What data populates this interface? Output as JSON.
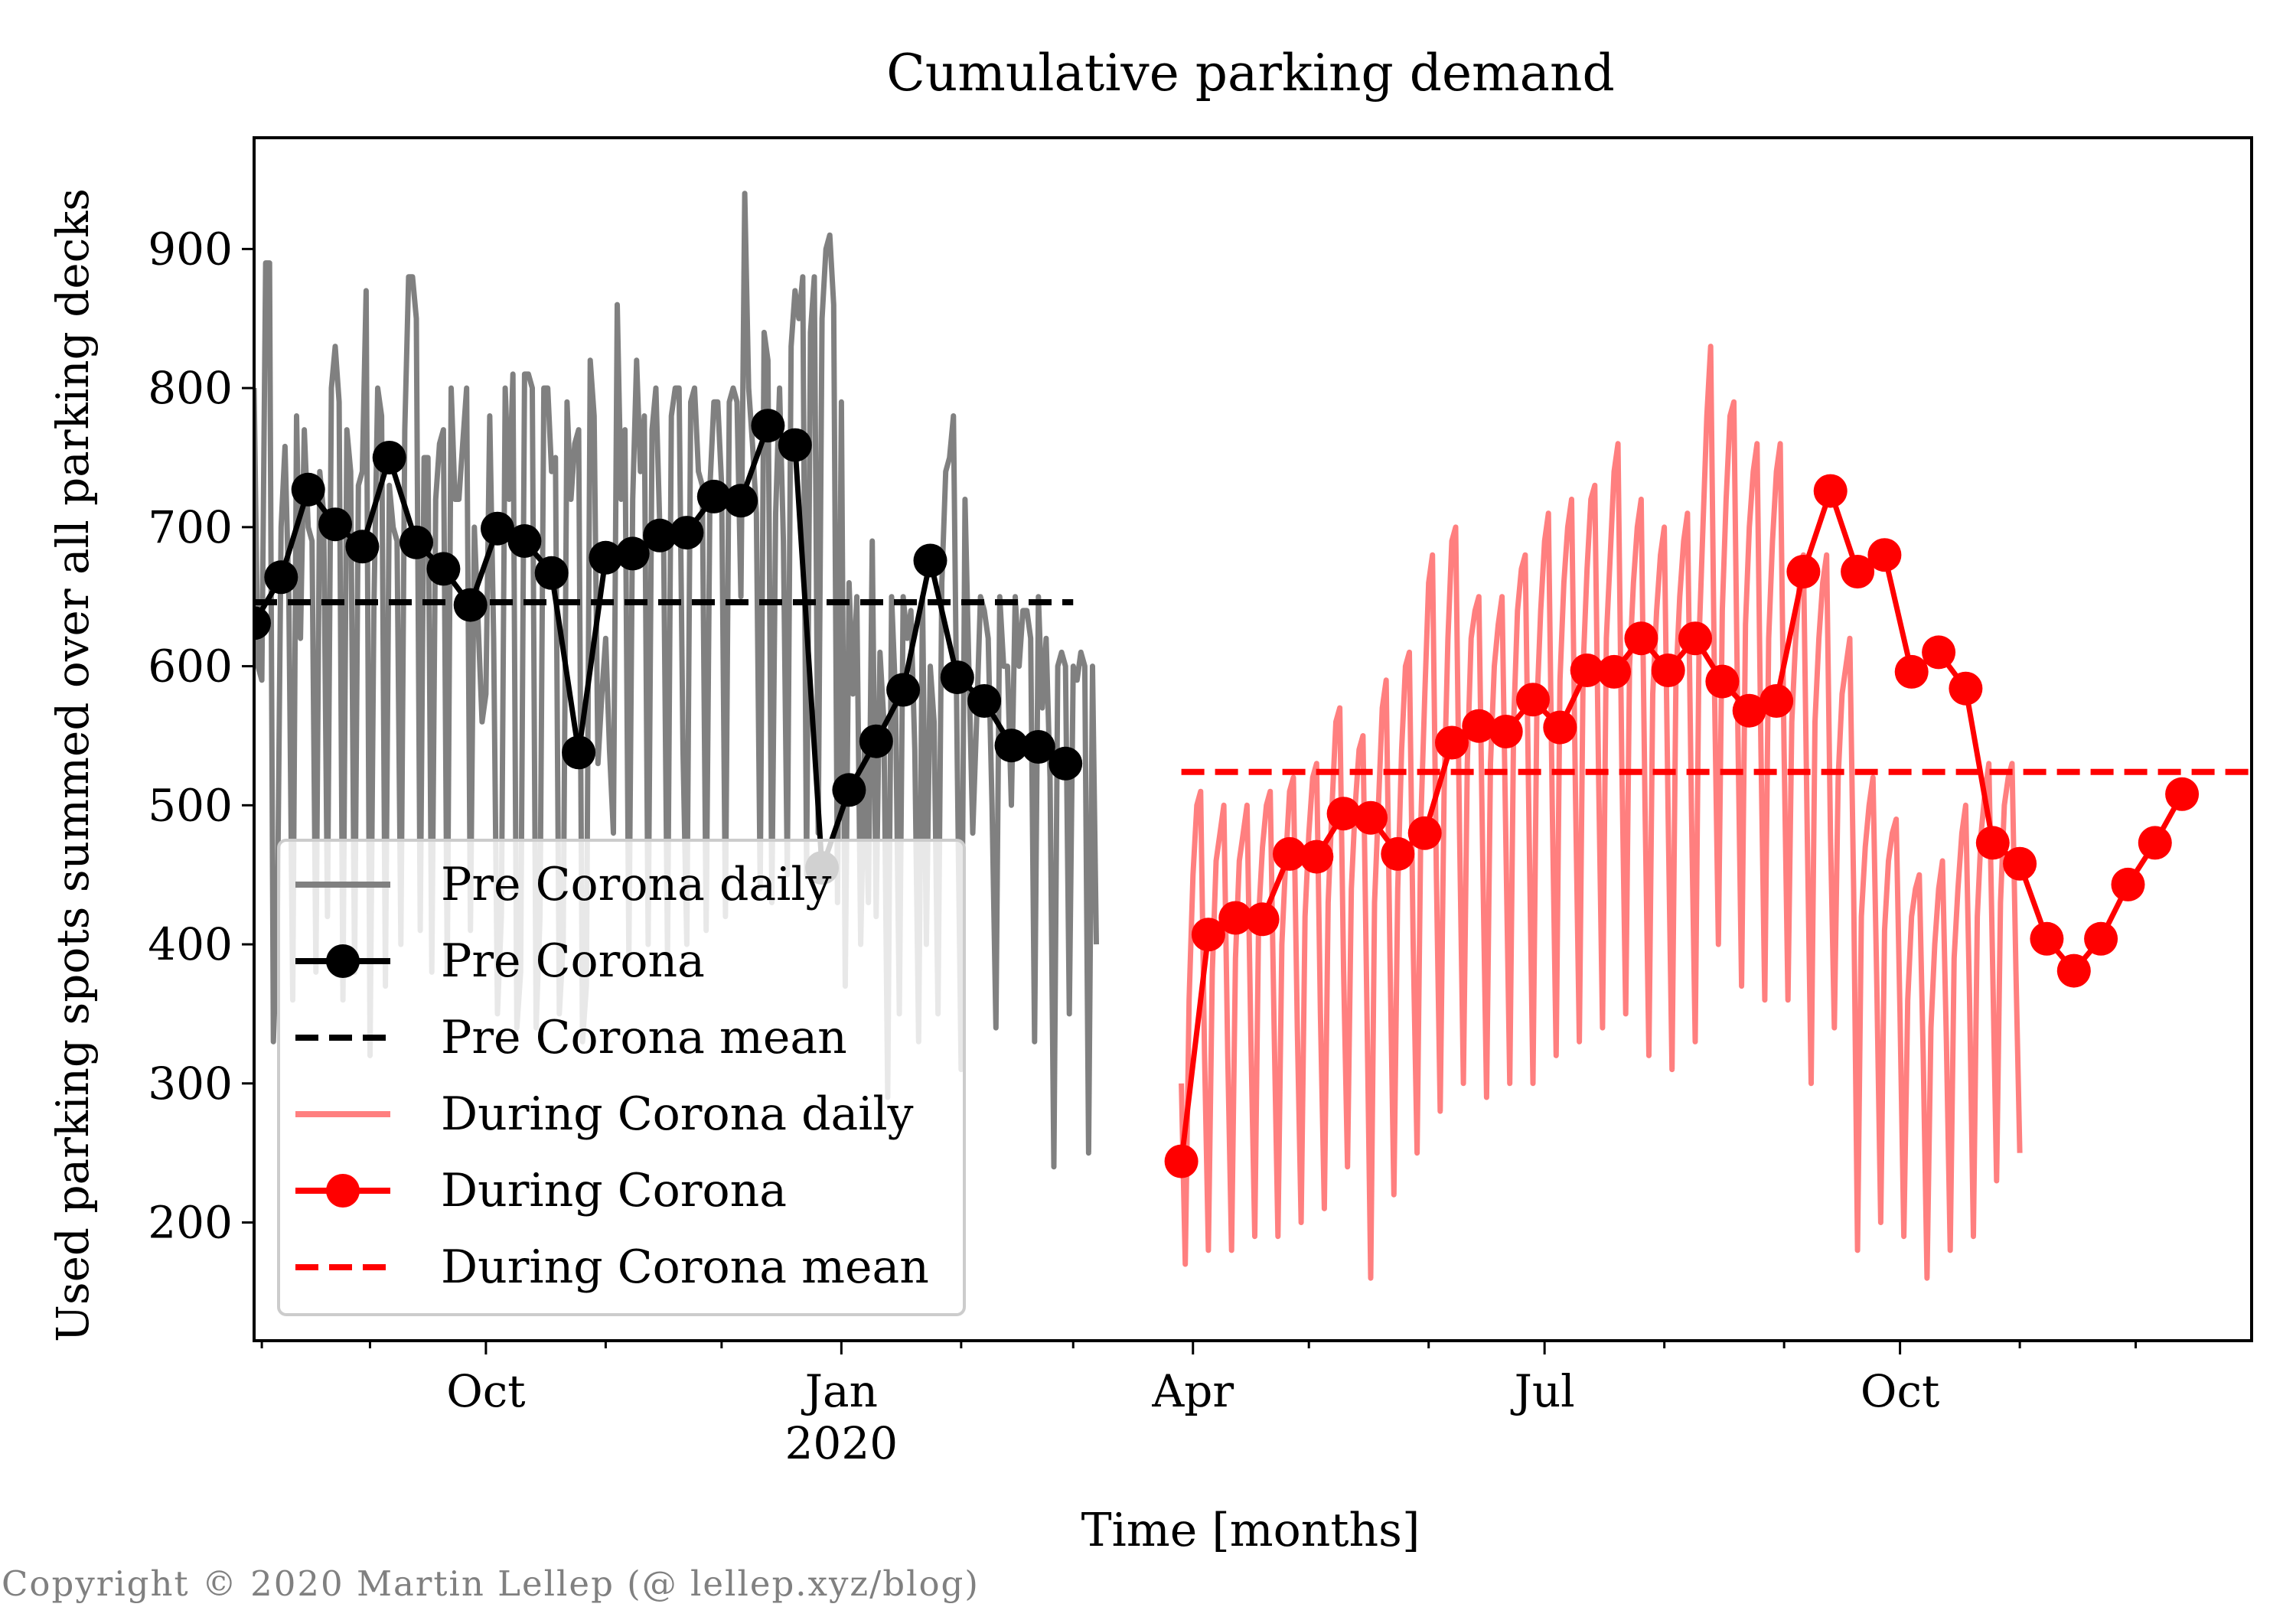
{
  "chart_data": {
    "type": "line",
    "title": "Cumulative parking demand",
    "xlabel": "Time [months]",
    "ylabel": "Used parking spots summed over all parking decks",
    "xlim": [
      "2019-08-02",
      "2020-12-31"
    ],
    "ylim": [
      115,
      980
    ],
    "yticks": [
      200,
      300,
      400,
      500,
      600,
      700,
      800,
      900
    ],
    "xticks": [
      {
        "date": "2019-10-01",
        "label": "Oct",
        "sublabel": ""
      },
      {
        "date": "2020-01-01",
        "label": "Jan",
        "sublabel": "2020"
      },
      {
        "date": "2020-04-01",
        "label": "Apr",
        "sublabel": ""
      },
      {
        "date": "2020-07-01",
        "label": "Jul",
        "sublabel": ""
      },
      {
        "date": "2020-10-01",
        "label": "Oct",
        "sublabel": ""
      }
    ],
    "minor_tick_dates": [
      "2019-08-04",
      "2019-09-01",
      "2019-11-01",
      "2019-12-01",
      "2020-02-01",
      "2020-03-01",
      "2020-05-01",
      "2020-06-01",
      "2020-08-01",
      "2020-09-01",
      "2020-11-01",
      "2020-12-01"
    ],
    "grid": false,
    "legend_position": "lower-left",
    "series": [
      {
        "name": "Pre Corona daily",
        "kind": "daily",
        "color": "#808080",
        "start_date": "2019-08-02",
        "values": [
          800,
          600,
          590,
          890,
          890,
          330,
          410,
          700,
          758,
          650,
          360,
          780,
          620,
          770,
          700,
          690,
          380,
          740,
          710,
          420,
          800,
          830,
          790,
          360,
          770,
          740,
          380,
          730,
          740,
          870,
          320,
          640,
          800,
          780,
          370,
          730,
          700,
          690,
          400,
          770,
          880,
          880,
          850,
          410,
          750,
          750,
          380,
          720,
          760,
          770,
          380,
          800,
          720,
          720,
          760,
          800,
          410,
          700,
          630,
          560,
          580,
          780,
          620,
          350,
          420,
          800,
          720,
          810,
          340,
          380,
          810,
          810,
          800,
          340,
          420,
          800,
          800,
          740,
          750,
          350,
          400,
          790,
          720,
          760,
          770,
          330,
          370,
          820,
          780,
          530,
          580,
          620,
          540,
          480,
          860,
          720,
          770,
          390,
          720,
          820,
          740,
          780,
          400,
          770,
          800,
          700,
          690,
          390,
          780,
          800,
          800,
          540,
          400,
          790,
          800,
          740,
          730,
          410,
          730,
          790,
          790,
          730,
          420,
          790,
          800,
          790,
          650,
          940,
          800,
          760,
          710,
          440,
          840,
          820,
          430,
          710,
          800,
          690,
          450,
          830,
          870,
          850,
          880,
          450,
          840,
          880,
          480,
          850,
          900,
          910,
          860,
          430,
          790,
          370,
          660,
          580,
          650,
          400,
          540,
          430,
          690,
          420,
          610,
          560,
          290,
          650,
          580,
          350,
          650,
          620,
          640,
          540,
          330,
          650,
          400,
          600,
          560,
          350,
          660,
          740,
          750,
          780,
          530,
          310,
          720,
          600,
          480,
          560,
          650,
          640,
          620,
          500,
          340,
          650,
          600,
          600,
          500,
          650,
          600,
          640,
          640,
          620,
          330,
          650,
          570,
          620,
          520,
          240,
          600,
          610,
          600,
          350,
          600,
          590,
          610,
          600,
          250,
          600,
          400
        ]
      },
      {
        "name": "Pre Corona",
        "kind": "weekly",
        "color": "#000000",
        "values": [
          {
            "date": "2019-08-02",
            "y": 631
          },
          {
            "date": "2019-08-09",
            "y": 664
          },
          {
            "date": "2019-08-16",
            "y": 727
          },
          {
            "date": "2019-08-23",
            "y": 702
          },
          {
            "date": "2019-08-30",
            "y": 686
          },
          {
            "date": "2019-09-06",
            "y": 750
          },
          {
            "date": "2019-09-13",
            "y": 689
          },
          {
            "date": "2019-09-20",
            "y": 670
          },
          {
            "date": "2019-09-27",
            "y": 644
          },
          {
            "date": "2019-10-04",
            "y": 699
          },
          {
            "date": "2019-10-11",
            "y": 690
          },
          {
            "date": "2019-10-18",
            "y": 667
          },
          {
            "date": "2019-10-25",
            "y": 538
          },
          {
            "date": "2019-11-01",
            "y": 678
          },
          {
            "date": "2019-11-08",
            "y": 681
          },
          {
            "date": "2019-11-15",
            "y": 694
          },
          {
            "date": "2019-11-22",
            "y": 696
          },
          {
            "date": "2019-11-29",
            "y": 722
          },
          {
            "date": "2019-12-06",
            "y": 719
          },
          {
            "date": "2019-12-13",
            "y": 773
          },
          {
            "date": "2019-12-20",
            "y": 759
          },
          {
            "date": "2019-12-27",
            "y": 455
          },
          {
            "date": "2020-01-03",
            "y": 511
          },
          {
            "date": "2020-01-10",
            "y": 546
          },
          {
            "date": "2020-01-17",
            "y": 583
          },
          {
            "date": "2020-01-24",
            "y": 676
          },
          {
            "date": "2020-01-31",
            "y": 592
          },
          {
            "date": "2020-02-07",
            "y": 575
          },
          {
            "date": "2020-02-14",
            "y": 543
          },
          {
            "date": "2020-02-21",
            "y": 542
          },
          {
            "date": "2020-02-28",
            "y": 530
          }
        ]
      },
      {
        "name": "Pre Corona mean",
        "kind": "mean",
        "color": "#000000",
        "y": 646,
        "x_start": "2019-08-02",
        "x_end": "2020-03-01"
      },
      {
        "name": "During Corona daily",
        "kind": "daily",
        "color": "#ff7f7f",
        "start_date": "2020-03-29",
        "values": [
          300,
          170,
          360,
          450,
          500,
          510,
          320,
          180,
          380,
          460,
          480,
          500,
          320,
          180,
          390,
          460,
          480,
          500,
          330,
          190,
          420,
          470,
          500,
          510,
          340,
          190,
          400,
          460,
          510,
          520,
          340,
          200,
          420,
          480,
          520,
          530,
          350,
          210,
          430,
          500,
          560,
          570,
          380,
          240,
          440,
          500,
          540,
          550,
          360,
          160,
          430,
          500,
          570,
          590,
          390,
          220,
          440,
          540,
          600,
          610,
          400,
          250,
          490,
          580,
          660,
          680,
          450,
          280,
          510,
          620,
          690,
          700,
          480,
          300,
          530,
          620,
          640,
          650,
          460,
          290,
          530,
          600,
          630,
          650,
          470,
          300,
          560,
          640,
          670,
          680,
          480,
          300,
          570,
          640,
          690,
          710,
          500,
          320,
          590,
          660,
          700,
          720,
          510,
          330,
          600,
          670,
          720,
          730,
          520,
          340,
          620,
          680,
          740,
          760,
          530,
          350,
          600,
          660,
          700,
          720,
          500,
          320,
          580,
          640,
          680,
          700,
          490,
          310,
          590,
          650,
          690,
          710,
          500,
          330,
          620,
          700,
          780,
          830,
          580,
          400,
          640,
          720,
          780,
          790,
          560,
          370,
          630,
          700,
          740,
          760,
          540,
          360,
          620,
          690,
          740,
          760,
          540,
          360,
          560,
          620,
          660,
          680,
          480,
          300,
          560,
          620,
          660,
          680,
          480,
          340,
          520,
          580,
          600,
          620,
          440,
          180,
          420,
          470,
          500,
          520,
          370,
          200,
          410,
          460,
          480,
          490,
          350,
          190,
          360,
          420,
          440,
          450,
          320,
          160,
          340,
          400,
          440,
          460,
          330,
          180,
          390,
          440,
          480,
          500,
          360,
          190,
          420,
          480,
          510,
          530,
          380,
          230,
          430,
          500,
          520,
          530,
          380,
          250
        ]
      },
      {
        "name": "During Corona",
        "kind": "weekly",
        "color": "#ff0000",
        "values": [
          {
            "date": "2020-03-29",
            "y": 244
          },
          {
            "date": "2020-04-05",
            "y": 407
          },
          {
            "date": "2020-04-12",
            "y": 419
          },
          {
            "date": "2020-04-19",
            "y": 418
          },
          {
            "date": "2020-04-26",
            "y": 465
          },
          {
            "date": "2020-05-03",
            "y": 463
          },
          {
            "date": "2020-05-10",
            "y": 494
          },
          {
            "date": "2020-05-17",
            "y": 491
          },
          {
            "date": "2020-05-24",
            "y": 465
          },
          {
            "date": "2020-05-31",
            "y": 480
          },
          {
            "date": "2020-06-07",
            "y": 545
          },
          {
            "date": "2020-06-14",
            "y": 557
          },
          {
            "date": "2020-06-21",
            "y": 553
          },
          {
            "date": "2020-06-28",
            "y": 576
          },
          {
            "date": "2020-07-05",
            "y": 556
          },
          {
            "date": "2020-07-12",
            "y": 597
          },
          {
            "date": "2020-07-19",
            "y": 596
          },
          {
            "date": "2020-07-26",
            "y": 620
          },
          {
            "date": "2020-08-02",
            "y": 597
          },
          {
            "date": "2020-08-09",
            "y": 620
          },
          {
            "date": "2020-08-16",
            "y": 589
          },
          {
            "date": "2020-08-23",
            "y": 568
          },
          {
            "date": "2020-08-30",
            "y": 575
          },
          {
            "date": "2020-09-06",
            "y": 668
          },
          {
            "date": "2020-09-13",
            "y": 726
          },
          {
            "date": "2020-09-20",
            "y": 668
          },
          {
            "date": "2020-09-27",
            "y": 680
          },
          {
            "date": "2020-10-04",
            "y": 596
          },
          {
            "date": "2020-10-11",
            "y": 610
          },
          {
            "date": "2020-10-18",
            "y": 584
          },
          {
            "date": "2020-10-25",
            "y": 473
          },
          {
            "date": "2020-11-01",
            "y": 458
          },
          {
            "date": "2020-11-08",
            "y": 404
          },
          {
            "date": "2020-11-15",
            "y": 381
          },
          {
            "date": "2020-11-22",
            "y": 404
          },
          {
            "date": "2020-11-29",
            "y": 443
          },
          {
            "date": "2020-12-06",
            "y": 473
          },
          {
            "date": "2020-12-13",
            "y": 508
          }
        ]
      },
      {
        "name": "During Corona mean",
        "kind": "mean",
        "color": "#ff0000",
        "y": 524,
        "x_start": "2020-03-29",
        "x_end": "2020-12-31"
      }
    ]
  },
  "copyright": "Copyright © 2020 Martin Lellep (@ lellep.xyz/blog)"
}
